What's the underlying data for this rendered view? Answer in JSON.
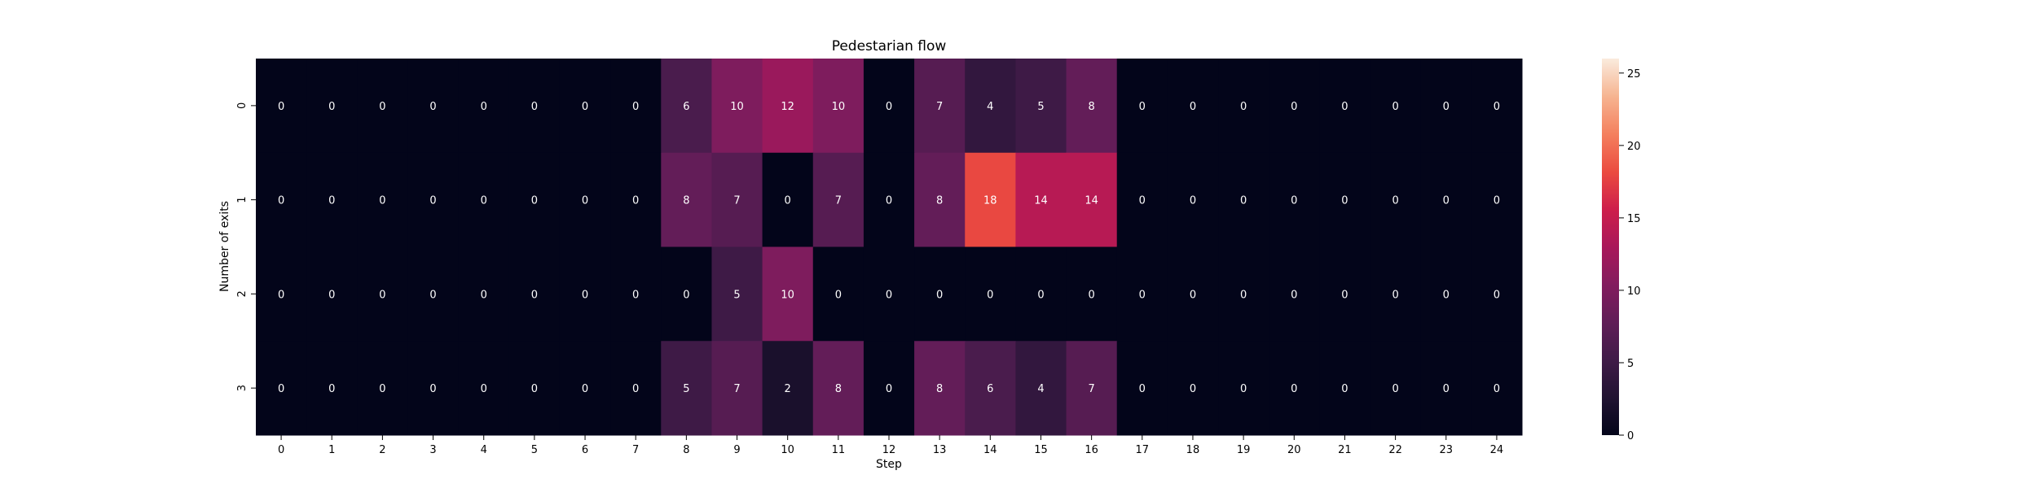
{
  "chart_data": {
    "type": "heatmap",
    "title": "Pedestarian flow",
    "xlabel": "Step",
    "ylabel": "Number of exits",
    "x_categories": [
      "0",
      "1",
      "2",
      "3",
      "4",
      "5",
      "6",
      "7",
      "8",
      "9",
      "10",
      "11",
      "12",
      "13",
      "14",
      "15",
      "16",
      "17",
      "18",
      "19",
      "20",
      "21",
      "22",
      "23",
      "24"
    ],
    "y_categories": [
      "0",
      "1",
      "2",
      "3"
    ],
    "values": [
      [
        0,
        0,
        0,
        0,
        0,
        0,
        0,
        0,
        6,
        10,
        12,
        10,
        0,
        7,
        4,
        5,
        8,
        0,
        0,
        0,
        0,
        0,
        0,
        0,
        0
      ],
      [
        0,
        0,
        0,
        0,
        0,
        0,
        0,
        0,
        8,
        7,
        0,
        7,
        0,
        8,
        18,
        14,
        14,
        0,
        0,
        0,
        0,
        0,
        0,
        0,
        0
      ],
      [
        0,
        0,
        0,
        0,
        0,
        0,
        0,
        0,
        0,
        5,
        10,
        0,
        0,
        0,
        0,
        0,
        0,
        0,
        0,
        0,
        0,
        0,
        0,
        0,
        0
      ],
      [
        0,
        0,
        0,
        0,
        0,
        0,
        0,
        0,
        5,
        7,
        2,
        8,
        0,
        8,
        6,
        4,
        7,
        0,
        0,
        0,
        0,
        0,
        0,
        0,
        0
      ]
    ],
    "colorbar": {
      "min": 0,
      "max": 26,
      "ticks": [
        "0",
        "5",
        "10",
        "15",
        "20",
        "25"
      ],
      "colormap": "rocket"
    },
    "grid": false,
    "annotations": true
  }
}
